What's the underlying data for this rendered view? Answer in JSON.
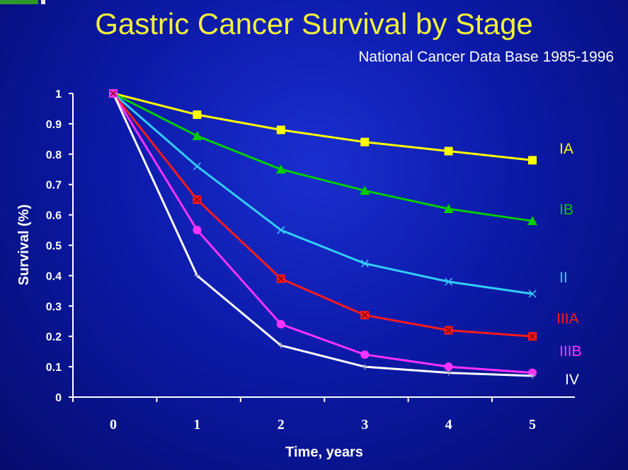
{
  "slide": {
    "title": "Gastric Cancer Survival by Stage",
    "subtitle": "National Cancer Data Base 1985-1996"
  },
  "chart_data": {
    "type": "line",
    "title": "Gastric Cancer Survival by Stage",
    "subtitle": "National Cancer Data Base 1985-1996",
    "xlabel": "Time, years",
    "ylabel": "Survival (%)",
    "x": [
      0,
      1,
      2,
      3,
      4,
      5
    ],
    "x_tick_labels": [
      "0",
      "1",
      "2",
      "3",
      "4",
      "5"
    ],
    "xlim": [
      0,
      5
    ],
    "ylim": [
      0,
      1
    ],
    "y_ticks": [
      0,
      0.1,
      0.2,
      0.3,
      0.4,
      0.5,
      0.6,
      0.7,
      0.8,
      0.9,
      1
    ],
    "y_tick_labels": [
      "0",
      "0.1",
      "0.2",
      "0.3",
      "0.4",
      "0.5",
      "0.6",
      "0.7",
      "0.8",
      "0.9",
      "1"
    ],
    "grid": false,
    "legend": "inline-right",
    "series": [
      {
        "name": "IA",
        "color": "#ffff00",
        "marker": "square",
        "values": [
          1,
          0.93,
          0.88,
          0.84,
          0.81,
          0.78
        ]
      },
      {
        "name": "IB",
        "color": "#00cc00",
        "marker": "triangle",
        "values": [
          1,
          0.86,
          0.75,
          0.68,
          0.62,
          0.58
        ]
      },
      {
        "name": "II",
        "color": "#33ccff",
        "marker": "x",
        "values": [
          1,
          0.76,
          0.55,
          0.44,
          0.38,
          0.34
        ]
      },
      {
        "name": "IIIA",
        "color": "#ff1a1a",
        "marker": "boxed-x",
        "values": [
          1,
          0.65,
          0.39,
          0.27,
          0.22,
          0.2
        ]
      },
      {
        "name": "IIIB",
        "color": "#ff33ff",
        "marker": "circle",
        "values": [
          1,
          0.55,
          0.24,
          0.14,
          0.1,
          0.08
        ]
      },
      {
        "name": "IV",
        "color": "#ffffff",
        "marker": "plus",
        "values": [
          1,
          0.4,
          0.17,
          0.1,
          0.08,
          0.07
        ]
      }
    ]
  }
}
